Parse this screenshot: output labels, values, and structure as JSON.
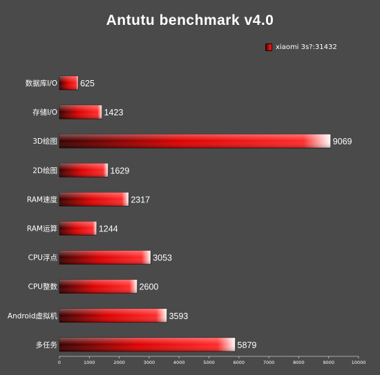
{
  "chart_data": {
    "type": "bar",
    "orientation": "horizontal",
    "title": "Antutu benchmark v4.0",
    "categories": [
      "数据库I/O",
      "存储I/O",
      "3D绘图",
      "2D绘图",
      "RAM速度",
      "RAM运算",
      "CPU浮点",
      "CPU整数",
      "Android虚拟机",
      "多任务"
    ],
    "series": [
      {
        "name": "xiaomi 3s?:31432",
        "values": [
          625,
          1423,
          9069,
          1629,
          2317,
          1244,
          3053,
          2600,
          3593,
          5879
        ]
      }
    ],
    "xlim": [
      0,
      10000
    ],
    "xticks": [
      "0",
      "1000",
      "2000",
      "3000",
      "4000",
      "5000",
      "6000",
      "7000",
      "8000",
      "9000",
      "10000"
    ],
    "legend_position": "top-right",
    "grid": false,
    "colors": {
      "background": "#4a4a4a",
      "bar_dark": "#3a0000",
      "bar_mid": "#e00000",
      "bar_bright": "#ff2a2a",
      "bar_highlight": "#ffffff",
      "text": "#ffffff"
    }
  }
}
